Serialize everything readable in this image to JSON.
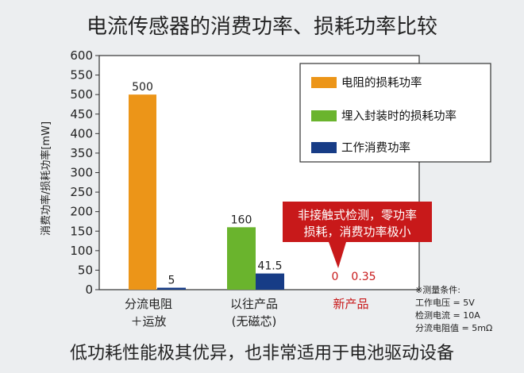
{
  "header": {
    "title": "电流传感器的消费功率、损耗功率比较"
  },
  "footer": {
    "subtitle": "低功耗性能极其优异，也非常适用于电池驱动设备"
  },
  "chart_data": {
    "type": "bar",
    "ylabel": "消费功率/损耗功率[mW]",
    "ylim": [
      0,
      600
    ],
    "yticks": [
      0,
      50,
      100,
      150,
      200,
      250,
      300,
      350,
      400,
      450,
      500,
      550,
      600
    ],
    "ytick_labels": [
      "0",
      "50",
      "100",
      "150",
      "200",
      "250",
      "300",
      "350",
      "400",
      "450",
      "500",
      "550",
      "600"
    ],
    "grid": false,
    "legend_position": "top-right",
    "categories": [
      {
        "line1": "分流电阻",
        "line2": "＋运放"
      },
      {
        "line1": "以往产品",
        "line2": "(无磁芯)"
      },
      {
        "line1": "新产品",
        "line2": ""
      }
    ],
    "series": [
      {
        "name": "电阻的损耗功率",
        "color": "#ec9518",
        "values": [
          500,
          null,
          null
        ],
        "labels": [
          "500",
          "",
          ""
        ]
      },
      {
        "name": "埋入封装时的损耗功率",
        "color": "#6ab42d",
        "values": [
          null,
          160,
          0
        ],
        "labels": [
          "",
          "160",
          "0"
        ]
      },
      {
        "name": "工作消费功率",
        "color": "#173c86",
        "values": [
          5,
          41.5,
          0.35
        ],
        "labels": [
          "5",
          "41.5",
          "0.35"
        ]
      }
    ],
    "highlight_color": "#c8191a",
    "callout": {
      "line1": "非接触式检测，零功率",
      "line2": "损耗，消费功率极小"
    },
    "note": {
      "lines": [
        "※测量条件:",
        "工作电压 = 5V",
        "检测电流 = 10A",
        "分流电阻值 = 5mΩ"
      ]
    }
  }
}
